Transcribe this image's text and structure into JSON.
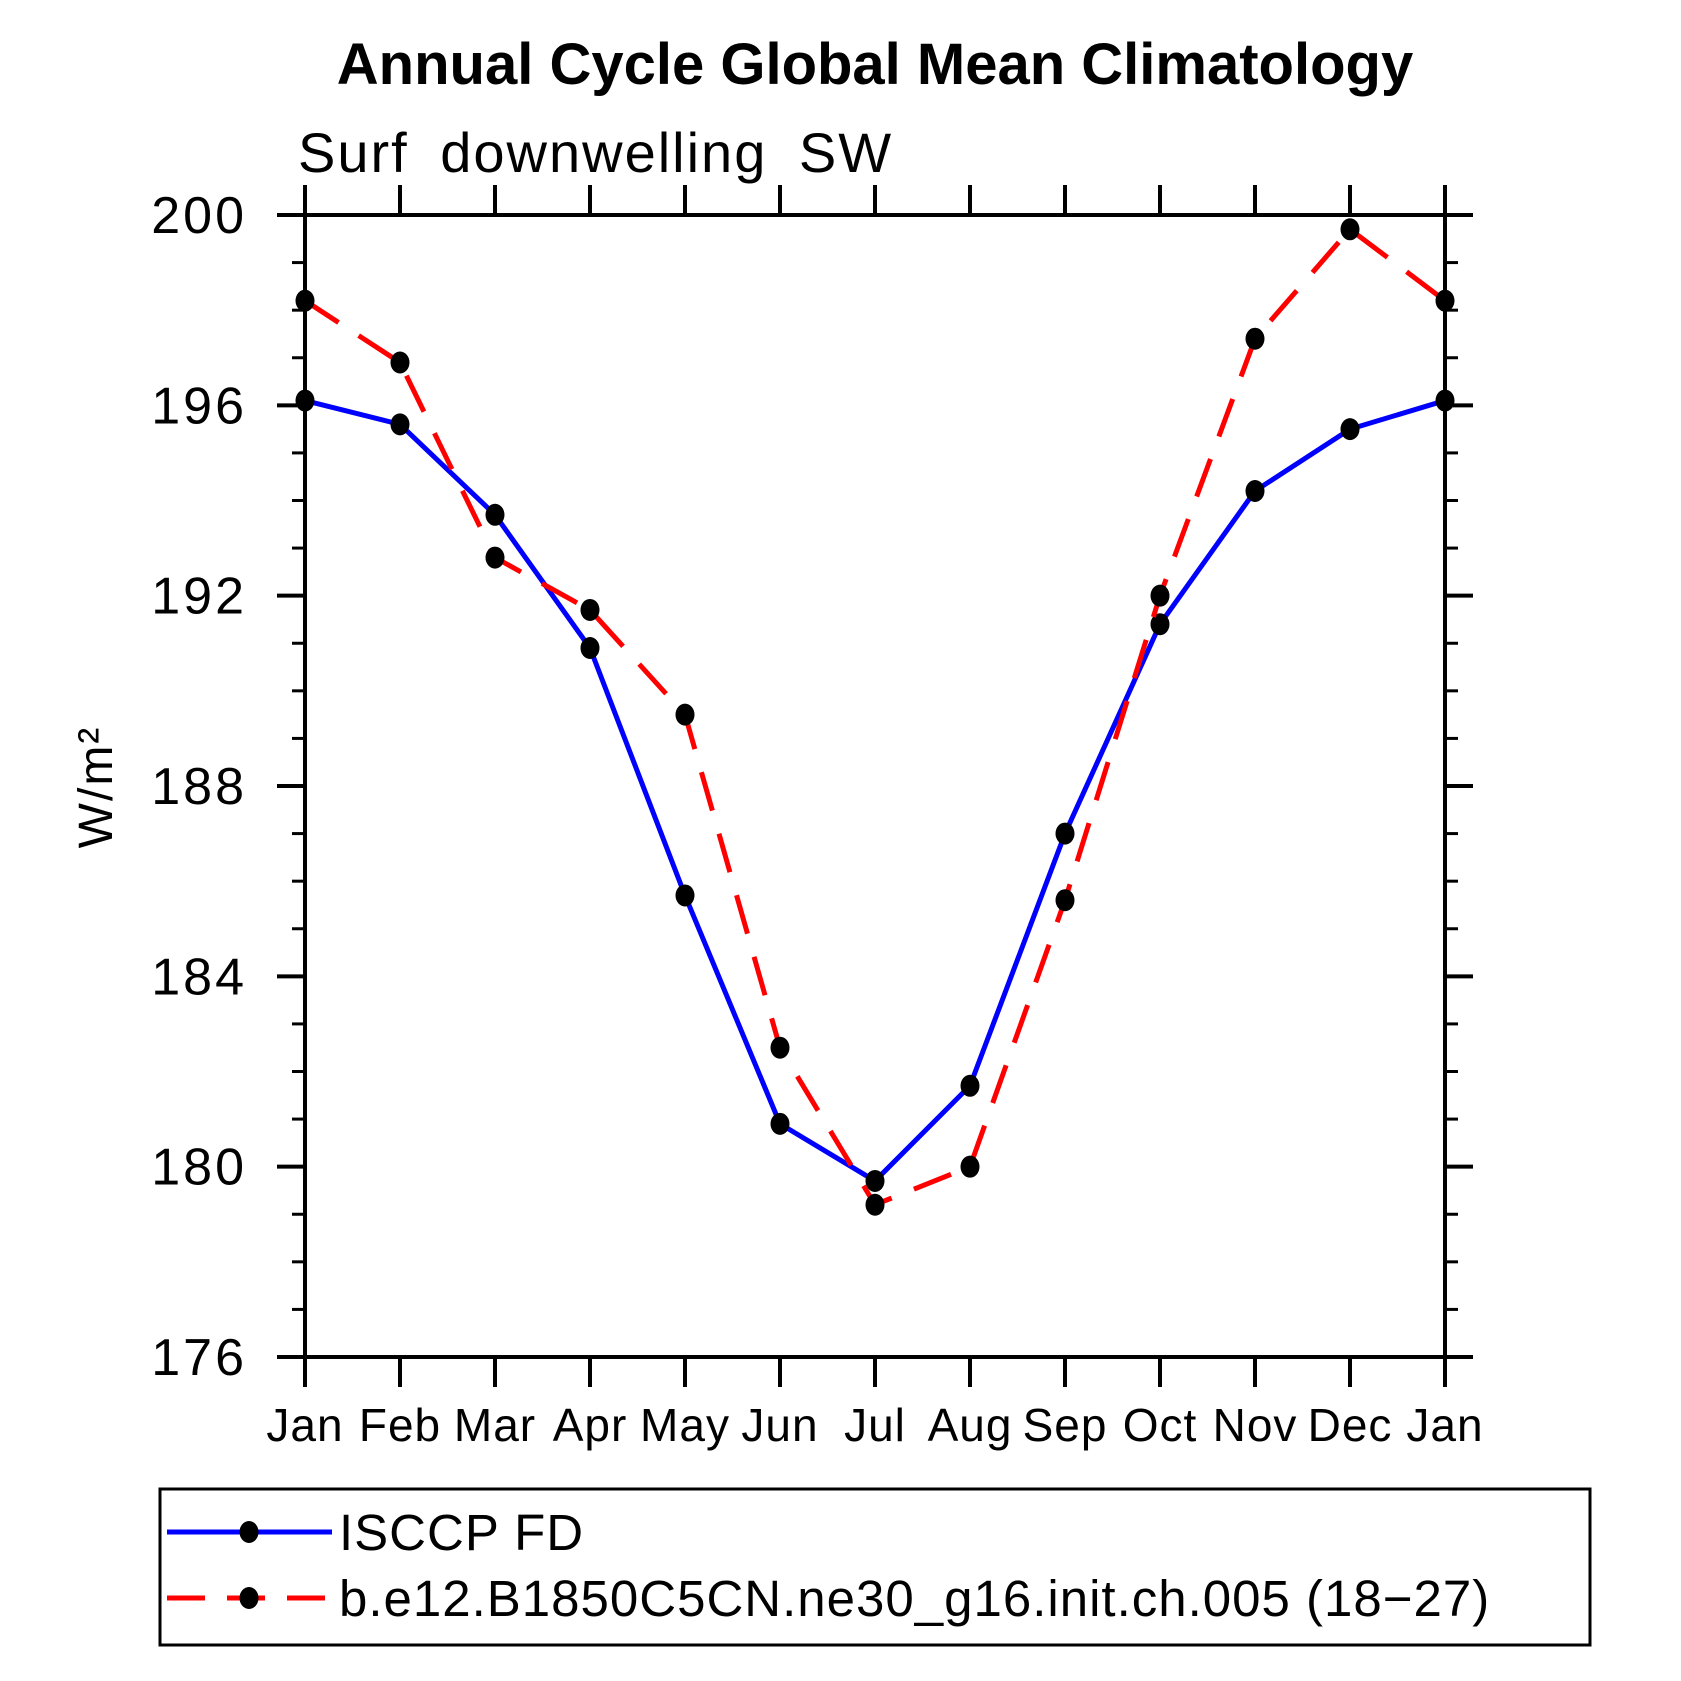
{
  "title": "Annual Cycle Global Mean Climatology",
  "chart_data": {
    "type": "line",
    "title": "Annual Cycle Global Mean Climatology",
    "subtitle": "Surf downwelling SW",
    "ylabel": "W/m²",
    "xlabel": "",
    "categories": [
      "Jan",
      "Feb",
      "Mar",
      "Apr",
      "May",
      "Jun",
      "Jul",
      "Aug",
      "Sep",
      "Oct",
      "Nov",
      "Dec",
      "Jan"
    ],
    "ylim": [
      176,
      200
    ],
    "ytick_major": [
      176,
      180,
      184,
      188,
      192,
      196,
      200
    ],
    "ytick_major_step": 4,
    "ytick_minor_step": 1,
    "grid": false,
    "legend_position": "bottom-left-box",
    "series": [
      {
        "name": "ISCCP FD",
        "color": "#0000ff",
        "line_style": "solid",
        "marker": "filled-circle",
        "marker_color": "#000000",
        "values": [
          196.1,
          195.6,
          193.7,
          190.9,
          185.7,
          180.9,
          179.7,
          181.7,
          187.0,
          191.4,
          194.2,
          195.5,
          196.1
        ]
      },
      {
        "name": "b.e12.B1850C5CN.ne30_g16.init.ch.005 (18−27)",
        "color": "#ff0000",
        "line_style": "dashed",
        "marker": "filled-circle",
        "marker_color": "#000000",
        "values": [
          198.2,
          196.9,
          192.8,
          191.7,
          189.5,
          182.5,
          179.2,
          180.0,
          185.6,
          192.0,
          197.4,
          199.7,
          198.2
        ]
      }
    ]
  }
}
